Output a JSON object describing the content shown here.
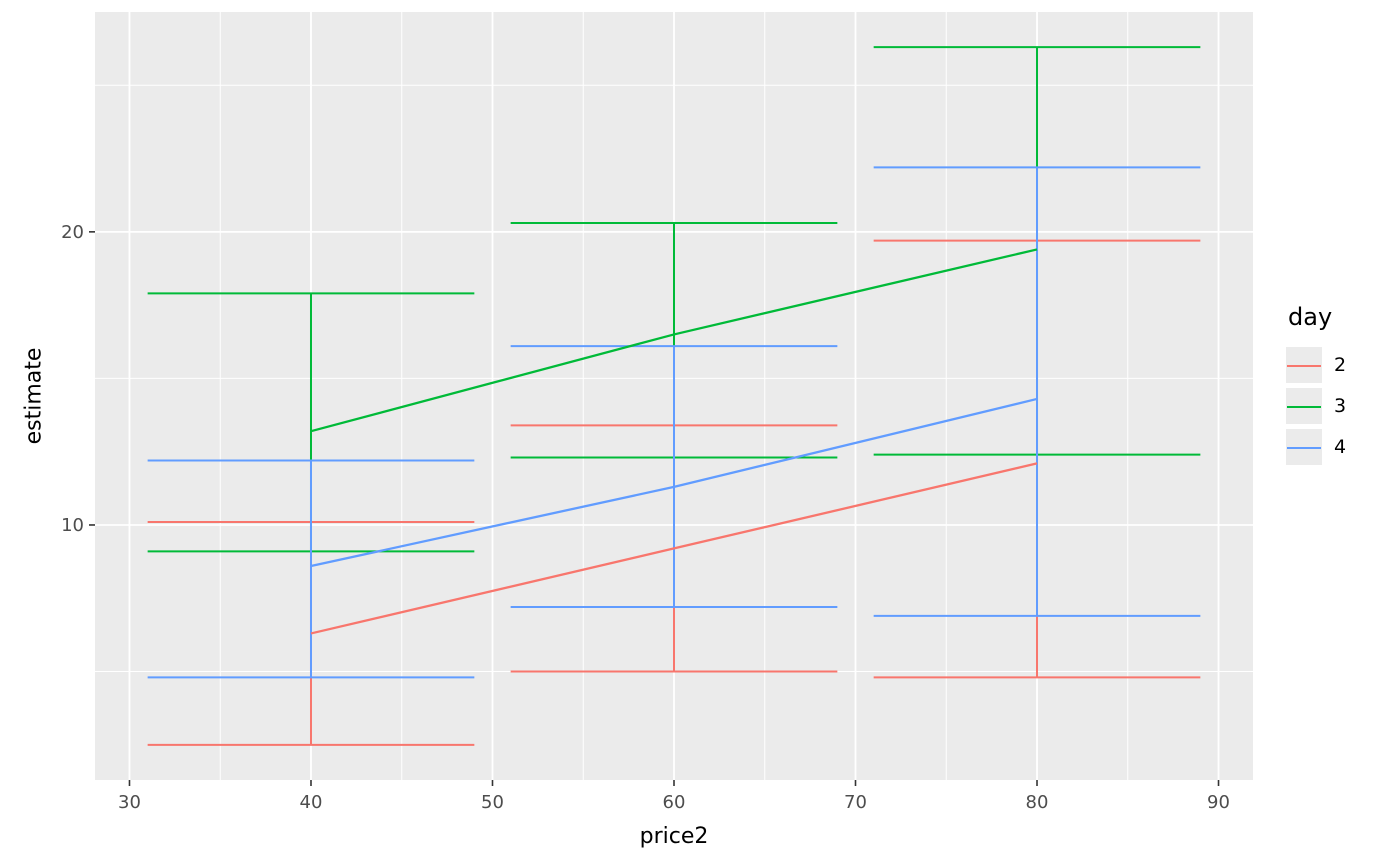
{
  "figure": {
    "background": "#FFFFFF",
    "panel_background": "#EBEBEB",
    "grid_color": "#FFFFFF",
    "tick_color": "#333333",
    "tick_label_color": "#4D4D4D",
    "axis_title_color": "#000000"
  },
  "axes": {
    "x_title": "price2",
    "y_title": "estimate"
  },
  "legend": {
    "title": "day",
    "key_fill": "#EBEBEB",
    "entries": [
      {
        "label": "2",
        "color": "#F8766D"
      },
      {
        "label": "3",
        "color": "#00BA38"
      },
      {
        "label": "4",
        "color": "#619CFF"
      }
    ]
  },
  "chart_data": {
    "type": "line",
    "title": "",
    "xlabel": "price2",
    "ylabel": "estimate",
    "x": [
      40,
      60,
      80
    ],
    "xlim": [
      28.1,
      91.9
    ],
    "ylim": [
      1.3,
      27.5
    ],
    "x_major_ticks": [
      30,
      40,
      50,
      60,
      70,
      80,
      90
    ],
    "x_minor_ticks": [
      35,
      45,
      55,
      65,
      75,
      85
    ],
    "y_major_ticks": [
      10,
      20
    ],
    "y_minor_ticks": [
      5,
      15,
      25
    ],
    "grid": true,
    "legend_title": "day",
    "legend_position": "right",
    "errorbar_cap_halfwidth": 9,
    "series": [
      {
        "name": "2",
        "color": "#F8766D",
        "estimates": [
          6.3,
          9.2,
          12.1
        ],
        "lower": [
          2.5,
          5.0,
          4.8
        ],
        "upper": [
          10.1,
          13.4,
          19.7
        ]
      },
      {
        "name": "3",
        "color": "#00BA38",
        "estimates": [
          13.2,
          16.5,
          19.4
        ],
        "lower": [
          9.1,
          12.3,
          12.4
        ],
        "upper": [
          17.9,
          20.3,
          26.3
        ]
      },
      {
        "name": "4",
        "color": "#619CFF",
        "estimates": [
          8.6,
          11.3,
          14.3
        ],
        "lower": [
          4.8,
          7.2,
          6.9
        ],
        "upper": [
          12.2,
          16.1,
          22.2
        ]
      }
    ]
  }
}
